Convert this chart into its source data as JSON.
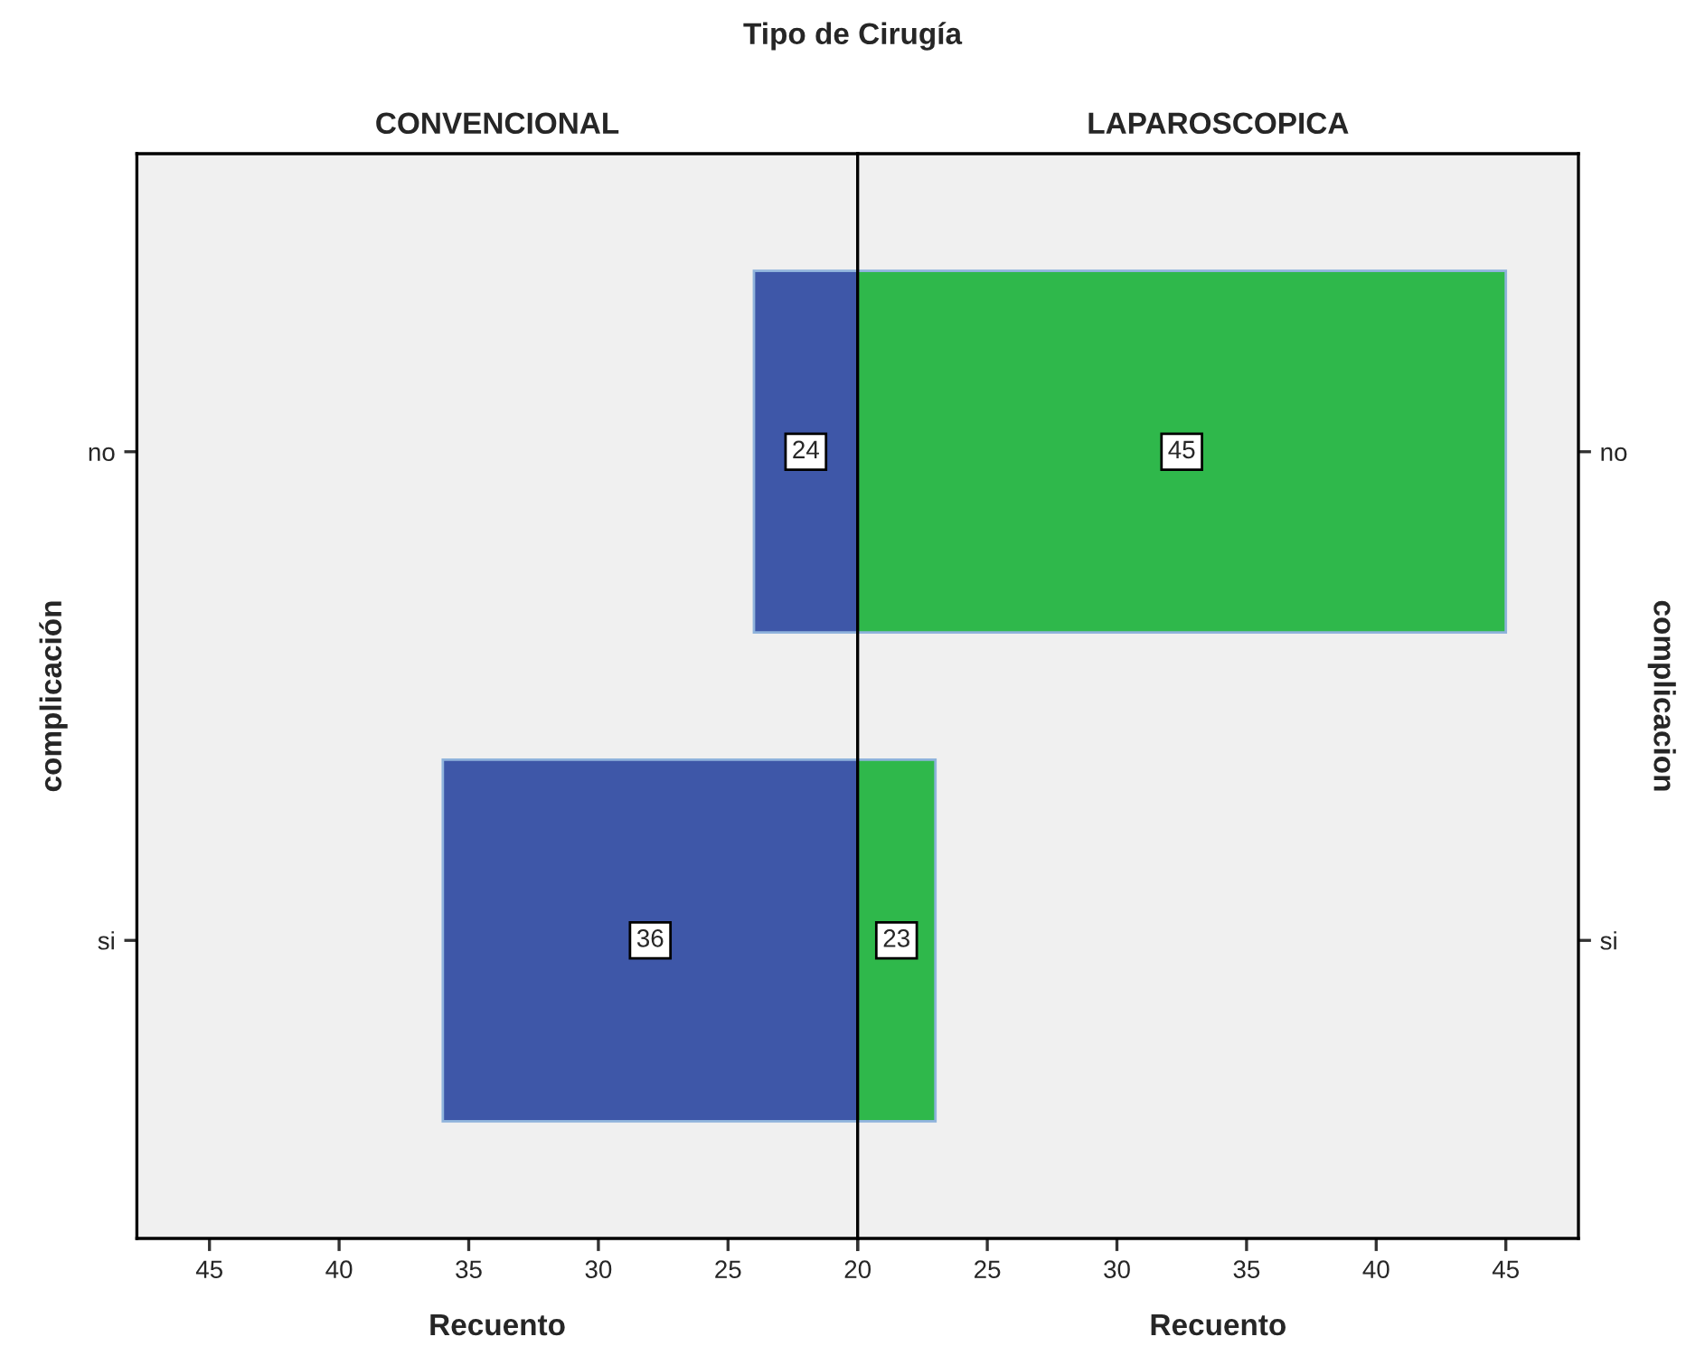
{
  "chart_data": [
    {
      "type": "bar",
      "orientation": "horizontal",
      "title": "CONVENCIONAL",
      "annotations": [
        "Tipo de Cirugía"
      ],
      "xlabel": "Recuento",
      "ylabel": "complicación",
      "categories": [
        "no",
        "si"
      ],
      "values": [
        24,
        36
      ],
      "color": "#3e57a8",
      "xlim": [
        47.8,
        20
      ],
      "xticks": [
        45,
        40,
        35,
        30,
        25,
        {
          "value": 20,
          "label": null
        }
      ],
      "data_labels": true,
      "grid": false,
      "legend": false
    },
    {
      "type": "bar",
      "orientation": "horizontal",
      "title": "LAPAROSCOPICA",
      "xlabel": "Recuento",
      "ylabel": "complicacion",
      "categories": [
        "no",
        "si"
      ],
      "values": [
        45,
        23
      ],
      "color": "#2fb84b",
      "xlim": [
        20,
        47.8
      ],
      "xticks": [
        20,
        25,
        30,
        35,
        40,
        45
      ],
      "data_labels": true,
      "grid": false,
      "legend": false
    }
  ]
}
